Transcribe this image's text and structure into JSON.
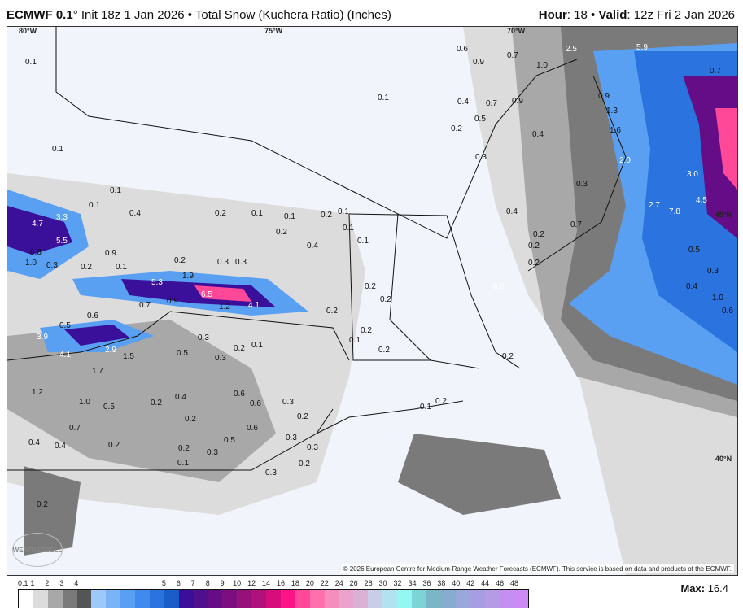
{
  "header": {
    "model": "ECMWF 0.1",
    "init": "° Init 18z 1 Jan 2026 • Total Snow (Kuchera Ratio) (Inches)",
    "hour_label": "Hour",
    "hour": ": 18 • ",
    "valid_label": "Valid",
    "valid": ": 12z Fri 2 Jan 2026"
  },
  "map": {
    "coords": [
      "80°W",
      "75°W",
      "70°W",
      "45°N",
      "40°N"
    ],
    "labels": [
      "0.1",
      "0.1",
      "0.1",
      "0.1",
      "0.6",
      "0.9",
      "0.7",
      "1.0",
      "2.5",
      "5.9",
      "0.7",
      "0.4",
      "0.7",
      "0.9",
      "0.9",
      "1.3",
      "0.5",
      "0.2",
      "0.4",
      "1.6",
      "0.3",
      "2.0",
      "3.0",
      "0.1",
      "0.4",
      "0.2",
      "0.1",
      "0.1",
      "0.2",
      "0.1",
      "0.2",
      "3.3",
      "4.7",
      "5.5",
      "0.9",
      "0.8",
      "1.0",
      "0.3",
      "0.2",
      "0.1",
      "0.2",
      "0.4",
      "0.3",
      "0.3",
      "1.9",
      "5.3",
      "6.5",
      "1.2",
      "4.1",
      "0.7",
      "0.9",
      "0.2",
      "0.3",
      "0.6",
      "0.5",
      "3.9",
      "2.9",
      "1.5",
      "4.1",
      "0.5",
      "0.3",
      "0.2",
      "0.1",
      "1.7",
      "1.2",
      "1.0",
      "0.5",
      "0.2",
      "0.4",
      "0.6",
      "0.6",
      "0.2",
      "0.3",
      "0.6",
      "0.7",
      "0.4",
      "0.4",
      "0.2",
      "0.2",
      "0.3",
      "0.5",
      "0.2",
      "0.3",
      "0.3",
      "0.1",
      "0.3",
      "0.2",
      "0.2",
      "0.2",
      "0.1",
      "0.2",
      "0.2",
      "0.1",
      "0.1",
      "0.1",
      "0.2",
      "0.2",
      "0.2",
      "0.2",
      "0.2",
      "0.4",
      "0.7",
      "0.3",
      "6.8",
      "2.7",
      "7.8",
      "4.5",
      "0.5",
      "0.3",
      "0.4",
      "0.6",
      "1.0",
      "0.2"
    ],
    "copyright": "© 2026 European Centre for Medium-Range Weather Forecasts (ECMWF). This service is based on data and products of the ECMWF.",
    "logo": "WEATHERBELL"
  },
  "legend": {
    "ticks": [
      "0.1",
      "1",
      "2",
      "3",
      "4",
      "5",
      "6",
      "7",
      "8",
      "9",
      "10",
      "12",
      "14",
      "16",
      "18",
      "20",
      "22",
      "24",
      "26",
      "28",
      "30",
      "32",
      "34",
      "36",
      "38",
      "40",
      "42",
      "44",
      "46",
      "48"
    ],
    "colors": [
      "#ffffff",
      "#dcdcdc",
      "#a8a8a8",
      "#7a7a7a",
      "#555555",
      "#9cc8fa",
      "#7ab4f7",
      "#5aa0f2",
      "#3f8aec",
      "#2b74e0",
      "#1a5cc8",
      "#3a0f9a",
      "#50108e",
      "#650d86",
      "#7c0e80",
      "#94127a",
      "#b0117a",
      "#d80d7d",
      "#ff1385",
      "#ff4898",
      "#ff70ad",
      "#f38ebd",
      "#eba3cb",
      "#dab2d6",
      "#c9cde5",
      "#b0e3ef",
      "#95f7f1",
      "#7cd4d6",
      "#7ab6c6",
      "#86acd0",
      "#98a8da",
      "#a69ee0",
      "#b59ae6",
      "#c48ff0",
      "#cb8af5"
    ],
    "max_label": "Max:",
    "max_value": "16.4"
  }
}
